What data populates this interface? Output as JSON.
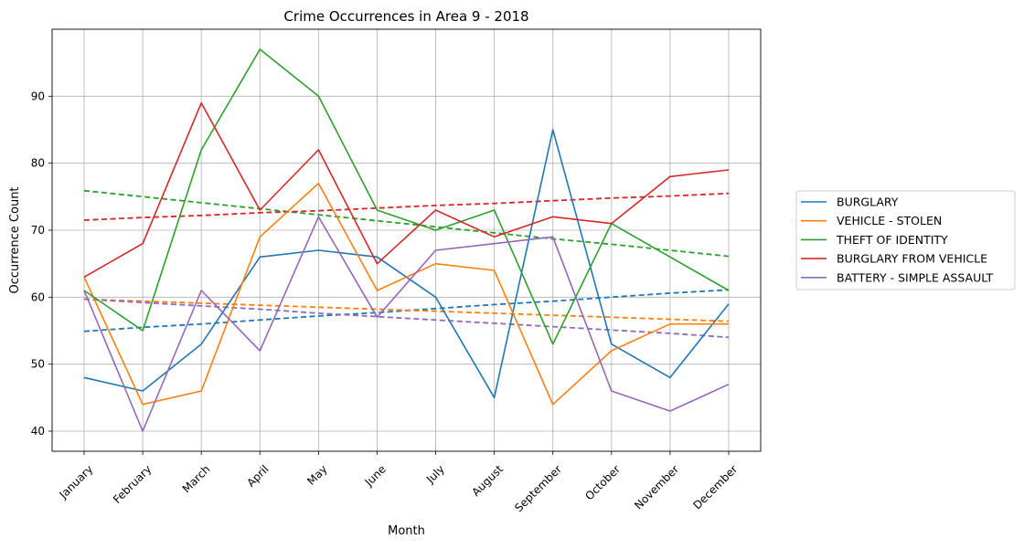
{
  "chart_data": {
    "type": "line",
    "title": "Crime Occurrences in Area 9 - 2018",
    "xlabel": "Month",
    "ylabel": "Occurrence Count",
    "categories": [
      "January",
      "February",
      "March",
      "April",
      "May",
      "June",
      "July",
      "August",
      "September",
      "October",
      "November",
      "December"
    ],
    "ylim": [
      37,
      100
    ],
    "yticks": [
      40,
      50,
      60,
      70,
      80,
      90
    ],
    "grid": true,
    "legend_placement": "right",
    "series": [
      {
        "name": "BURGLARY",
        "color": "#1f77b4",
        "values": [
          48,
          46,
          53,
          66,
          67,
          66,
          60,
          45,
          85,
          53,
          48,
          59
        ],
        "trend": [
          54.9,
          55.5,
          56.0,
          56.6,
          57.2,
          57.7,
          58.3,
          58.9,
          59.4,
          60.0,
          60.6,
          61.1
        ]
      },
      {
        "name": "VEHICLE - STOLEN",
        "color": "#ff7f0e",
        "values": [
          63,
          44,
          46,
          69,
          77,
          61,
          65,
          64,
          44,
          52,
          56,
          56
        ],
        "trend": [
          59.7,
          59.4,
          59.1,
          58.8,
          58.5,
          58.2,
          57.9,
          57.6,
          57.3,
          57.0,
          56.7,
          56.4
        ]
      },
      {
        "name": "THEFT OF IDENTITY",
        "color": "#2ca02c",
        "values": [
          61,
          55,
          82,
          97,
          90,
          73,
          70,
          73,
          53,
          71,
          66,
          61
        ],
        "trend": [
          75.9,
          75.0,
          74.1,
          73.2,
          72.3,
          71.4,
          70.5,
          69.6,
          68.7,
          67.9,
          67.0,
          66.1
        ]
      },
      {
        "name": "BURGLARY FROM VEHICLE",
        "color": "#d62728",
        "values": [
          63,
          68,
          89,
          73,
          82,
          65,
          73,
          69,
          72,
          71,
          78,
          79
        ],
        "trend": [
          71.5,
          71.9,
          72.2,
          72.6,
          72.9,
          73.3,
          73.7,
          74.0,
          74.4,
          74.8,
          75.1,
          75.5
        ]
      },
      {
        "name": "BATTERY - SIMPLE ASSAULT",
        "color": "#9467bd",
        "values": [
          61,
          40,
          61,
          52,
          72,
          57,
          67,
          68,
          69,
          46,
          43,
          47
        ],
        "trend": [
          59.7,
          59.2,
          58.7,
          58.2,
          57.6,
          57.1,
          56.6,
          56.1,
          55.6,
          55.1,
          54.6,
          54.0
        ]
      }
    ]
  }
}
